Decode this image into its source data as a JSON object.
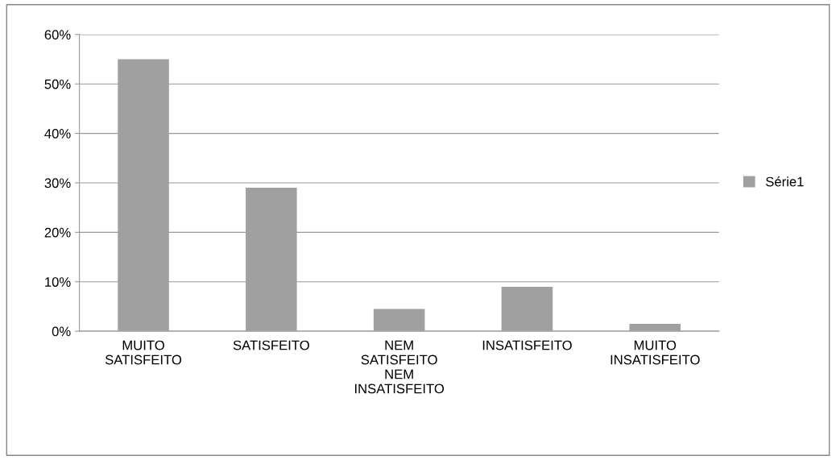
{
  "chart_data": {
    "type": "bar",
    "categories": [
      "MUITO\nSATISFEITO",
      "SATISFEITO",
      "NEM\nSATISFEITO\nNEM\nINSATISFEITO",
      "INSATISFEITO",
      "MUITO\nINSATISFEITO"
    ],
    "series": [
      {
        "name": "Série1",
        "color": "#a0a0a0",
        "values": [
          55,
          29,
          4.5,
          9,
          1.5
        ]
      }
    ],
    "ylim": [
      0,
      60
    ],
    "yticks": [
      {
        "value": 0,
        "label": "0%"
      },
      {
        "value": 10,
        "label": "10%"
      },
      {
        "value": 20,
        "label": "20%"
      },
      {
        "value": 30,
        "label": "30%"
      },
      {
        "value": 40,
        "label": "40%"
      },
      {
        "value": 50,
        "label": "50%"
      },
      {
        "value": 60,
        "label": "60%"
      }
    ],
    "grid": "y",
    "legend": "right"
  }
}
